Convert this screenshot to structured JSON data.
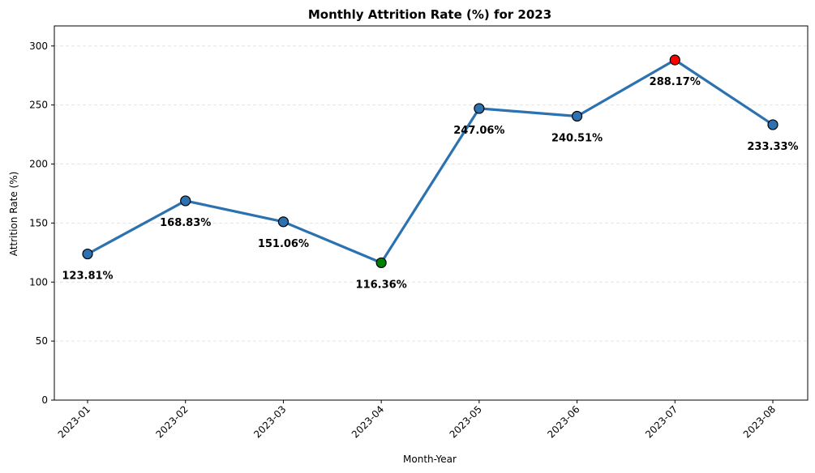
{
  "chart_data": {
    "type": "line",
    "title": "Monthly Attrition Rate (%) for 2023",
    "xlabel": "Month-Year",
    "ylabel": "Attrition Rate (%)",
    "categories": [
      "2023-01",
      "2023-02",
      "2023-03",
      "2023-04",
      "2023-05",
      "2023-06",
      "2023-07",
      "2023-08"
    ],
    "values": [
      123.81,
      168.83,
      151.06,
      116.36,
      247.06,
      240.51,
      288.17,
      233.33
    ],
    "data_labels": [
      "123.81%",
      "168.83%",
      "151.06%",
      "116.36%",
      "247.06%",
      "240.51%",
      "288.17%",
      "233.33%"
    ],
    "yticks": [
      0,
      50,
      100,
      150,
      200,
      250,
      300
    ],
    "ylim": [
      0,
      317
    ],
    "grid": "horizontal-dashed",
    "colors": {
      "line": "#2c72b0",
      "marker": "#2c72b0",
      "marker_min": "#008000",
      "marker_max": "#ff0000",
      "marker_edge": "#000000",
      "grid": "#e4e4e4"
    }
  }
}
